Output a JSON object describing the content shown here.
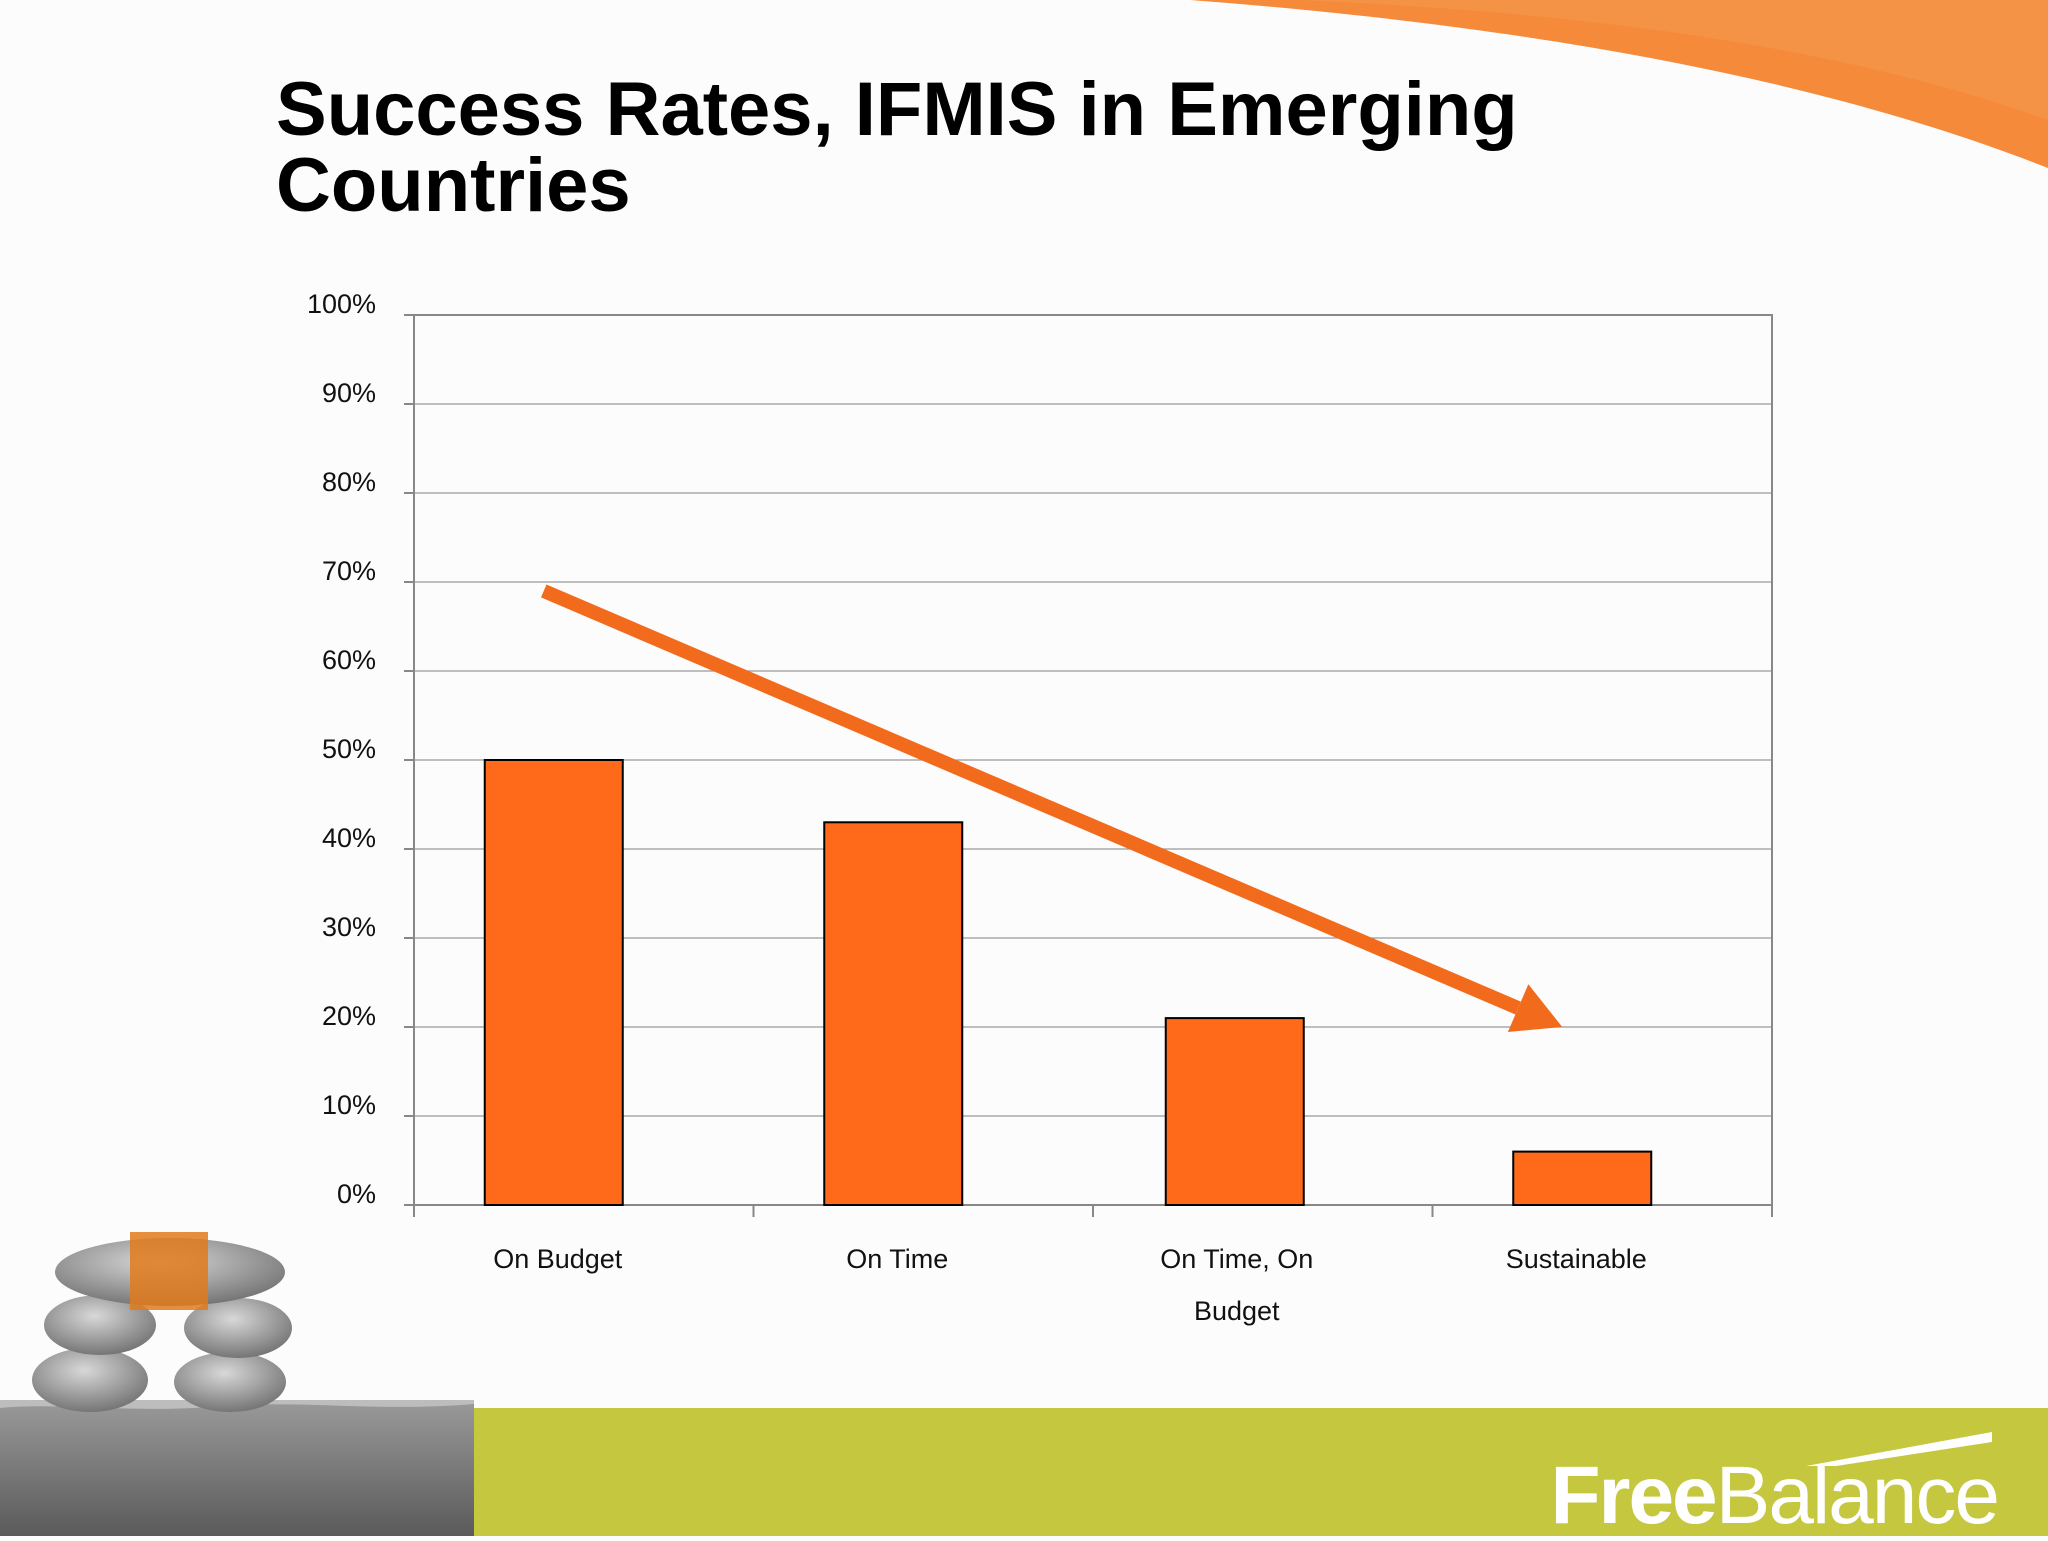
{
  "slide": {
    "title": "Success Rates, IFMIS in Emerging Countries"
  },
  "brand": {
    "logo_part1": "Free",
    "logo_part2": "Balance",
    "accent_color": "#f26b1d",
    "band_color": "#c5c83f"
  },
  "chart_data": {
    "type": "bar",
    "categories": [
      "On Budget",
      "On Time",
      "On Time, On Budget",
      "Sustainable"
    ],
    "category_lines": [
      [
        "On Budget"
      ],
      [
        "On Time"
      ],
      [
        "On Time, On",
        "Budget"
      ],
      [
        "Sustainable"
      ]
    ],
    "values": [
      50,
      43,
      21,
      6
    ],
    "y_ticks": [
      "0%",
      "10%",
      "20%",
      "30%",
      "40%",
      "50%",
      "60%",
      "70%",
      "80%",
      "90%",
      "100%"
    ],
    "ylim": [
      0,
      100
    ],
    "grid": true,
    "bar_color": "#ff6a1a",
    "annotation": {
      "type": "arrow",
      "from": [
        0,
        69
      ],
      "to": [
        3,
        20
      ],
      "color": "#f26b1d"
    }
  }
}
